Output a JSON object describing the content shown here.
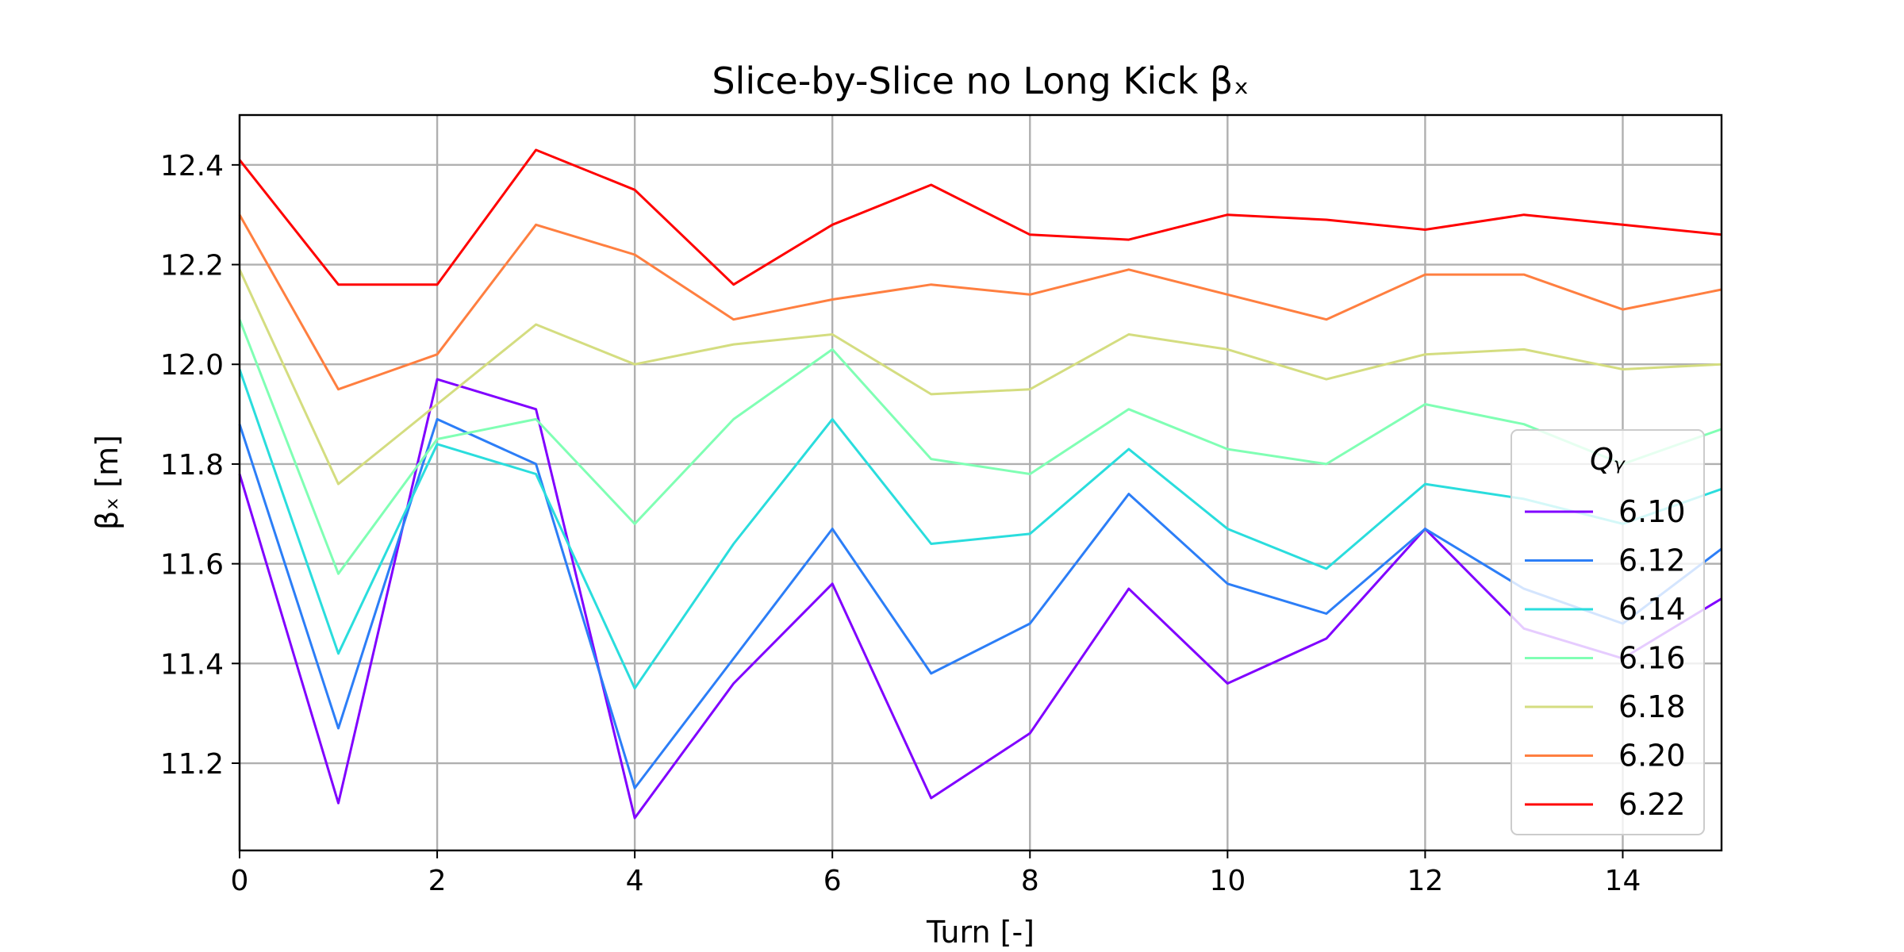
{
  "chart_data": {
    "type": "line",
    "title": "Slice-by-Slice no Long Kick βₓ",
    "xlabel": "Turn [-]",
    "ylabel": "βₓ [m]",
    "xlim": [
      0,
      15
    ],
    "ylim": [
      11.025,
      12.5
    ],
    "xticks": [
      "0",
      "2",
      "4",
      "6",
      "8",
      "10",
      "12",
      "14"
    ],
    "yticks": [
      "11.2",
      "11.4",
      "11.6",
      "11.8",
      "12.0",
      "12.2",
      "12.4"
    ],
    "grid": true,
    "legend": {
      "title": "Qᵧ",
      "placement": "center-right"
    },
    "x": [
      0,
      1,
      2,
      3,
      4,
      5,
      6,
      7,
      8,
      9,
      10,
      11,
      12,
      13,
      14,
      15
    ],
    "series": [
      {
        "name": "6.10",
        "color": "#8000ff",
        "values": [
          11.78,
          11.12,
          11.97,
          11.91,
          11.09,
          11.36,
          11.56,
          11.13,
          11.26,
          11.55,
          11.36,
          11.45,
          11.67,
          11.47,
          11.41,
          11.53
        ]
      },
      {
        "name": "6.12",
        "color": "#2c7ef7",
        "values": [
          11.88,
          11.27,
          11.89,
          11.8,
          11.15,
          11.41,
          11.67,
          11.38,
          11.48,
          11.74,
          11.56,
          11.5,
          11.67,
          11.55,
          11.48,
          11.63
        ]
      },
      {
        "name": "6.14",
        "color": "#2adddd",
        "values": [
          11.99,
          11.42,
          11.84,
          11.78,
          11.35,
          11.64,
          11.89,
          11.64,
          11.66,
          11.83,
          11.67,
          11.59,
          11.76,
          11.73,
          11.68,
          11.75
        ]
      },
      {
        "name": "6.16",
        "color": "#80ffb4",
        "values": [
          12.09,
          11.58,
          11.85,
          11.89,
          11.68,
          11.89,
          12.03,
          11.81,
          11.78,
          11.91,
          11.83,
          11.8,
          11.92,
          11.88,
          11.8,
          11.87
        ]
      },
      {
        "name": "6.18",
        "color": "#d4dd80",
        "values": [
          12.19,
          11.76,
          11.92,
          12.08,
          12.0,
          12.04,
          12.06,
          11.94,
          11.95,
          12.06,
          12.03,
          11.97,
          12.02,
          12.03,
          11.99,
          12.0
        ]
      },
      {
        "name": "6.20",
        "color": "#ff7f40",
        "values": [
          12.3,
          11.95,
          12.02,
          12.28,
          12.22,
          12.09,
          12.13,
          12.16,
          12.14,
          12.19,
          12.14,
          12.09,
          12.18,
          12.18,
          12.11,
          12.15
        ]
      },
      {
        "name": "6.22",
        "color": "#ff0000",
        "values": [
          12.41,
          12.16,
          12.16,
          12.43,
          12.35,
          12.16,
          12.28,
          12.36,
          12.26,
          12.25,
          12.3,
          12.29,
          12.27,
          12.3,
          12.28,
          12.26
        ]
      }
    ]
  }
}
